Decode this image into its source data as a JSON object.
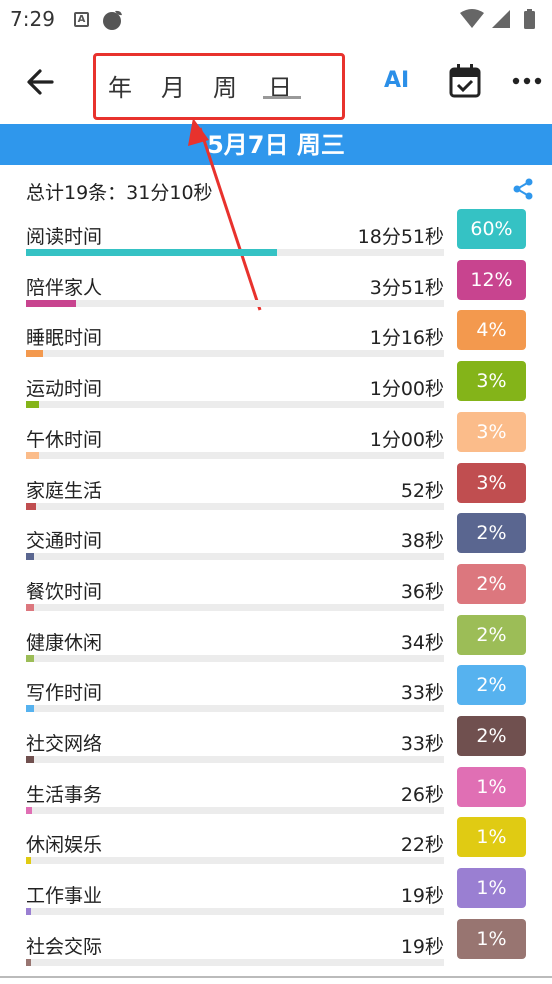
{
  "status": {
    "time": "7:29",
    "a_glyph": "A"
  },
  "header": {
    "tabs": [
      "年",
      "月",
      "周",
      "日"
    ],
    "selected_tab": "日",
    "ai_label": "AI"
  },
  "date_label": "5月7日 周三",
  "summary": "总计19条：31分10秒",
  "colors": {
    "accent": "#2f97ec",
    "highlight_box": "#e8322d",
    "arrow": "#e8322d"
  },
  "rows": [
    {
      "name": "阅读时间",
      "duration": "18分51秒",
      "percent_label": "60%",
      "share": 0.6,
      "color": "#35c2c4"
    },
    {
      "name": "陪伴家人",
      "duration": "3分51秒",
      "percent_label": "12%",
      "share": 0.12,
      "color": "#c8448f"
    },
    {
      "name": "睡眠时间",
      "duration": "1分16秒",
      "percent_label": "4%",
      "share": 0.04,
      "color": "#f3994e"
    },
    {
      "name": "运动时间",
      "duration": "1分00秒",
      "percent_label": "3%",
      "share": 0.03,
      "color": "#84b419"
    },
    {
      "name": "午休时间",
      "duration": "1分00秒",
      "percent_label": "3%",
      "share": 0.03,
      "color": "#fbbc8a"
    },
    {
      "name": "家庭生活",
      "duration": "52秒",
      "percent_label": "3%",
      "share": 0.025,
      "color": "#c04e50"
    },
    {
      "name": "交通时间",
      "duration": "38秒",
      "percent_label": "2%",
      "share": 0.02,
      "color": "#5a6690"
    },
    {
      "name": "餐饮时间",
      "duration": "36秒",
      "percent_label": "2%",
      "share": 0.02,
      "color": "#dc777e"
    },
    {
      "name": "健康休闲",
      "duration": "34秒",
      "percent_label": "2%",
      "share": 0.02,
      "color": "#9cbd57"
    },
    {
      "name": "写作时间",
      "duration": "33秒",
      "percent_label": "2%",
      "share": 0.018,
      "color": "#56b2ef"
    },
    {
      "name": "社交网络",
      "duration": "33秒",
      "percent_label": "2%",
      "share": 0.018,
      "color": "#70504f"
    },
    {
      "name": "生活事务",
      "duration": "26秒",
      "percent_label": "1%",
      "share": 0.014,
      "color": "#e06fb4"
    },
    {
      "name": "休闲娱乐",
      "duration": "22秒",
      "percent_label": "1%",
      "share": 0.012,
      "color": "#e0cb13"
    },
    {
      "name": "工作事业",
      "duration": "19秒",
      "percent_label": "1%",
      "share": 0.01,
      "color": "#9a7fd2"
    },
    {
      "name": "社会交际",
      "duration": "19秒",
      "percent_label": "1%",
      "share": 0.01,
      "color": "#987571"
    }
  ],
  "icons": {
    "back": "arrow-left-icon",
    "calendar": "calendar-check-icon",
    "more": "more-dots-icon",
    "share": "share-icon",
    "wifi": "wifi-icon",
    "signal": "signal-icon",
    "battery": "battery-icon"
  }
}
